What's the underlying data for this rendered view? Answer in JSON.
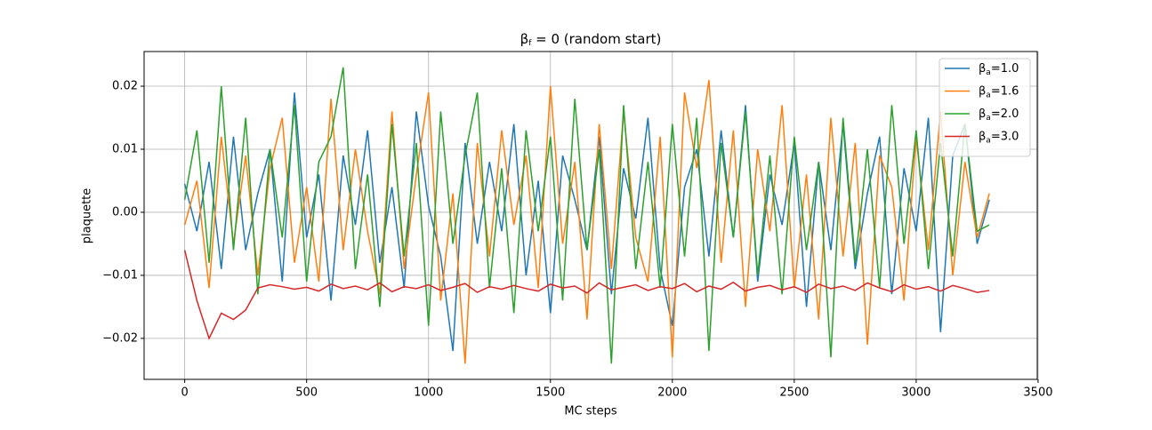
{
  "chart_data": {
    "type": "line",
    "title": "βf = 0 (random start)",
    "xlabel": "MC steps",
    "ylabel": "plaquette",
    "x": [
      0,
      50,
      100,
      150,
      200,
      250,
      300,
      350,
      400,
      450,
      500,
      550,
      600,
      650,
      700,
      750,
      800,
      850,
      900,
      950,
      1000,
      1050,
      1100,
      1150,
      1200,
      1250,
      1300,
      1350,
      1400,
      1450,
      1500,
      1550,
      1600,
      1650,
      1700,
      1750,
      1800,
      1850,
      1900,
      1950,
      2000,
      2050,
      2100,
      2150,
      2200,
      2250,
      2300,
      2350,
      2400,
      2450,
      2500,
      2550,
      2600,
      2650,
      2700,
      2750,
      2800,
      2850,
      2900,
      2950,
      3000,
      3050,
      3100,
      3150,
      3200,
      3250,
      3300
    ],
    "series": [
      {
        "name": "βa=1.0",
        "color": "#1f77b4",
        "values": [
          0.0045,
          -0.003,
          0.008,
          -0.009,
          0.012,
          -0.006,
          0.003,
          0.01,
          -0.011,
          0.019,
          -0.004,
          0.006,
          -0.014,
          0.009,
          -0.002,
          0.013,
          -0.008,
          0.004,
          -0.012,
          0.016,
          0.001,
          -0.007,
          -0.022,
          0.011,
          -0.005,
          0.008,
          -0.003,
          0.014,
          -0.01,
          0.005,
          -0.016,
          0.009,
          0.002,
          -0.006,
          0.012,
          -0.013,
          0.007,
          -0.001,
          0.015,
          -0.009,
          -0.018,
          0.004,
          0.01,
          -0.007,
          0.013,
          -0.004,
          0.017,
          -0.011,
          0.006,
          -0.002,
          0.011,
          -0.015,
          0.008,
          -0.006,
          0.014,
          -0.009,
          0.003,
          0.012,
          -0.013,
          0.007,
          -0.003,
          0.015,
          -0.019,
          0.009,
          0.014,
          -0.005,
          0.002
        ]
      },
      {
        "name": "βa=1.6",
        "color": "#ff7f0e",
        "values": [
          -0.002,
          0.005,
          -0.012,
          0.012,
          -0.005,
          0.009,
          -0.01,
          0.007,
          0.015,
          -0.008,
          0.004,
          -0.011,
          0.018,
          -0.006,
          0.01,
          -0.003,
          -0.013,
          0.016,
          -0.009,
          0.006,
          0.019,
          -0.014,
          0.003,
          -0.024,
          0.011,
          -0.007,
          0.013,
          -0.002,
          0.009,
          -0.012,
          0.02,
          -0.005,
          0.008,
          -0.017,
          0.014,
          -0.009,
          0.016,
          -0.004,
          -0.011,
          0.012,
          -0.023,
          0.019,
          0.007,
          0.021,
          -0.008,
          0.013,
          -0.015,
          0.01,
          -0.003,
          0.017,
          -0.012,
          0.006,
          -0.017,
          0.015,
          -0.007,
          0.011,
          -0.021,
          0.009,
          0.004,
          -0.014,
          0.012,
          -0.006,
          0.016,
          -0.01,
          0.008,
          -0.004,
          0.003
        ]
      },
      {
        "name": "βa=2.0",
        "color": "#2ca02c",
        "values": [
          0.002,
          0.013,
          -0.008,
          0.02,
          -0.006,
          0.015,
          -0.013,
          0.01,
          -0.004,
          0.017,
          -0.011,
          0.008,
          0.012,
          0.023,
          -0.009,
          0.006,
          -0.015,
          0.014,
          -0.007,
          0.011,
          -0.018,
          0.016,
          -0.005,
          0.009,
          0.019,
          -0.012,
          0.007,
          -0.016,
          0.013,
          -0.003,
          0.012,
          -0.014,
          0.018,
          -0.006,
          0.01,
          -0.024,
          0.017,
          -0.009,
          0.008,
          -0.012,
          0.014,
          -0.007,
          0.015,
          -0.022,
          0.011,
          -0.004,
          0.016,
          -0.01,
          0.009,
          -0.013,
          0.012,
          -0.006,
          0.008,
          -0.023,
          0.015,
          -0.008,
          0.01,
          -0.012,
          0.017,
          -0.005,
          0.013,
          -0.009,
          0.011,
          -0.007,
          0.014,
          -0.003,
          -0.002
        ]
      },
      {
        "name": "βa=3.0",
        "color": "#d62728",
        "values": [
          -0.006,
          -0.014,
          -0.02,
          -0.016,
          -0.017,
          -0.0155,
          -0.012,
          -0.0115,
          -0.0118,
          -0.0122,
          -0.0119,
          -0.0125,
          -0.0114,
          -0.0121,
          -0.0117,
          -0.0123,
          -0.0112,
          -0.0126,
          -0.0118,
          -0.0121,
          -0.0115,
          -0.0124,
          -0.0119,
          -0.0113,
          -0.0127,
          -0.0118,
          -0.0122,
          -0.0116,
          -0.0121,
          -0.0125,
          -0.0114,
          -0.012,
          -0.0117,
          -0.0128,
          -0.0112,
          -0.0123,
          -0.0119,
          -0.0115,
          -0.0124,
          -0.0118,
          -0.0121,
          -0.0113,
          -0.0126,
          -0.0117,
          -0.0122,
          -0.0111,
          -0.0125,
          -0.0119,
          -0.0116,
          -0.0123,
          -0.0118,
          -0.0127,
          -0.0114,
          -0.0121,
          -0.0117,
          -0.0124,
          -0.0112,
          -0.012,
          -0.0126,
          -0.0115,
          -0.0122,
          -0.0118,
          -0.0125,
          -0.0116,
          -0.0121,
          -0.0127,
          -0.0124
        ]
      }
    ],
    "xlim": [
      -166.5,
      3496.5
    ],
    "ylim": [
      -0.0265,
      0.0255
    ],
    "xticks": [
      0,
      500,
      1000,
      1500,
      2000,
      2500,
      3000,
      3500
    ],
    "yticks": [
      {
        "value": -0.02,
        "label": "−0.02"
      },
      {
        "value": -0.01,
        "label": "−0.01"
      },
      {
        "value": 0,
        "label": "0.00"
      },
      0.01,
      0.02
    ],
    "grid": true,
    "legend": "upper right"
  }
}
